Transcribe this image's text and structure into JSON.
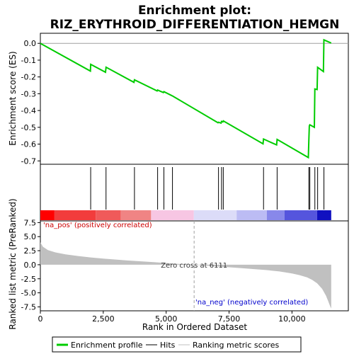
{
  "chart_data": {
    "type": "line",
    "title_line1": "Enrichment plot:",
    "title_line2": "RIZ_ERYTHROID_DIFFERENTIATION_HEMGN",
    "es_panel": {
      "ylabel": "Enrichment score (ES)",
      "ylim": [
        -0.72,
        0.06
      ],
      "yticks": [
        0.0,
        -0.1,
        -0.2,
        -0.3,
        -0.4,
        -0.5,
        -0.6,
        -0.7
      ],
      "ytick_labels": [
        "0.0",
        "-0.1",
        "-0.2",
        "-0.3",
        "-0.4",
        "-0.5",
        "-0.6",
        "-0.7"
      ],
      "series": [
        {
          "name": "Enrichment profile",
          "color": "#00cc00",
          "x": [
            0,
            1990,
            2000,
            2590,
            2610,
            3720,
            3740,
            4640,
            4660,
            4890,
            4910,
            5230,
            5250,
            7060,
            7080,
            7180,
            7200,
            7250,
            7270,
            8850,
            8870,
            9390,
            9410,
            10650,
            10670,
            10690,
            10710,
            10890,
            10910,
            11000,
            11020,
            11250,
            11270,
            11560
          ],
          "y": [
            0.0,
            -0.165,
            -0.125,
            -0.172,
            -0.142,
            -0.232,
            -0.217,
            -0.283,
            -0.278,
            -0.293,
            -0.288,
            -0.312,
            -0.313,
            -0.473,
            -0.47,
            -0.475,
            -0.465,
            -0.468,
            -0.462,
            -0.598,
            -0.57,
            -0.605,
            -0.572,
            -0.68,
            -0.58,
            -0.492,
            -0.485,
            -0.5,
            -0.272,
            -0.275,
            -0.143,
            -0.168,
            0.021,
            0.002
          ]
        }
      ]
    },
    "hits": [
      2000,
      2610,
      3740,
      4660,
      4910,
      5250,
      7080,
      7200,
      7270,
      8870,
      9410,
      10670,
      10710,
      10910,
      11020,
      11270
    ],
    "hits_color": "#000000",
    "rank_panel": {
      "ylabel": "Ranked list metric (PreRanked)",
      "xlabel": "Rank in Ordered Dataset",
      "ylim": [
        -8.2,
        7.8
      ],
      "yticks": [
        7.5,
        5.0,
        2.5,
        0.0,
        -2.5,
        -5.0,
        -7.5
      ],
      "ytick_labels": [
        "7.5",
        "5.0",
        "2.5",
        "0.0",
        "-2.5",
        "-5.0",
        "-7.5"
      ],
      "xlim": [
        0,
        12240
      ],
      "xticks": [
        0,
        2500,
        5000,
        7500,
        10000
      ],
      "xtick_labels": [
        "0",
        "2,500",
        "5,000",
        "7,500",
        "10,000"
      ],
      "metric_color": "#c0c0c0",
      "metric_x": [
        0,
        100,
        300,
        600,
        1000,
        1500,
        2000,
        2500,
        3000,
        3500,
        4000,
        4500,
        5000,
        5500,
        6111,
        7000,
        8000,
        9000,
        9500,
        10000,
        10300,
        10600,
        10800,
        11000,
        11200,
        11350,
        11450,
        11520,
        11560
      ],
      "metric_y": [
        4.0,
        3.2,
        2.6,
        2.2,
        1.85,
        1.55,
        1.3,
        1.1,
        0.92,
        0.75,
        0.6,
        0.45,
        0.3,
        0.15,
        0.0,
        -0.3,
        -0.6,
        -0.95,
        -1.2,
        -1.55,
        -1.85,
        -2.25,
        -2.7,
        -3.3,
        -4.3,
        -5.5,
        -6.6,
        -7.4,
        -7.8
      ],
      "zero_cross_label": "Zero cross at 6111",
      "zero_cross_x": 6111,
      "pos_label": "'na_pos' (positively correlated)",
      "neg_label": "'na_neg' (negatively correlated)",
      "pos_color": "#cc0000",
      "neg_color": "#0000cc"
    },
    "heat_bar": {
      "segments": [
        {
          "x0": 0,
          "x1": 560,
          "color": "#ff0000"
        },
        {
          "x0": 560,
          "x1": 2200,
          "color": "#f23c3c"
        },
        {
          "x0": 2200,
          "x1": 3200,
          "color": "#f05a5a"
        },
        {
          "x0": 3200,
          "x1": 4400,
          "color": "#f08484"
        },
        {
          "x0": 4400,
          "x1": 6100,
          "color": "#f7c6e3"
        },
        {
          "x0": 6100,
          "x1": 7800,
          "color": "#dcdcf8"
        },
        {
          "x0": 7800,
          "x1": 9000,
          "color": "#bcbcf4"
        },
        {
          "x0": 9000,
          "x1": 9700,
          "color": "#8888ea"
        },
        {
          "x0": 9700,
          "x1": 11000,
          "color": "#5555dd"
        },
        {
          "x0": 11000,
          "x1": 11560,
          "color": "#1010c0"
        }
      ]
    },
    "legend": [
      {
        "label": "Enrichment profile",
        "color": "#00cc00",
        "style": "thick"
      },
      {
        "label": "Hits",
        "color": "#000000",
        "style": "thin"
      },
      {
        "label": "Ranking metric scores",
        "color": "#c0c0c0",
        "style": "thin"
      }
    ]
  }
}
